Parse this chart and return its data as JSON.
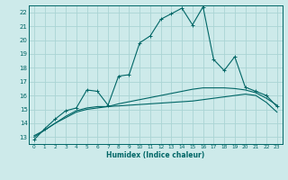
{
  "xlabel": "Humidex (Indice chaleur)",
  "xlim": [
    -0.5,
    23.5
  ],
  "ylim": [
    12.5,
    22.5
  ],
  "xticks": [
    0,
    1,
    2,
    3,
    4,
    5,
    6,
    7,
    8,
    9,
    10,
    11,
    12,
    13,
    14,
    15,
    16,
    17,
    18,
    19,
    20,
    21,
    22,
    23
  ],
  "yticks": [
    13,
    14,
    15,
    16,
    17,
    18,
    19,
    20,
    21,
    22
  ],
  "bg_color": "#cdeaea",
  "grid_color": "#aad4d4",
  "line_color": "#006666",
  "line1_y": [
    12.8,
    13.6,
    14.3,
    14.9,
    15.1,
    16.4,
    16.3,
    15.3,
    17.4,
    17.5,
    19.8,
    20.3,
    21.5,
    21.9,
    22.3,
    21.1,
    22.4,
    18.6,
    17.8,
    18.8,
    16.6,
    16.3,
    16.0,
    15.2
  ],
  "line2_y": [
    13.0,
    13.5,
    14.0,
    14.5,
    14.9,
    15.1,
    15.2,
    15.2,
    15.25,
    15.3,
    15.35,
    15.4,
    15.45,
    15.5,
    15.55,
    15.6,
    15.7,
    15.8,
    15.9,
    16.0,
    16.1,
    16.0,
    15.5,
    14.8
  ],
  "line3_y": [
    13.1,
    13.5,
    14.0,
    14.4,
    14.8,
    15.0,
    15.1,
    15.2,
    15.4,
    15.55,
    15.7,
    15.85,
    16.0,
    16.15,
    16.3,
    16.45,
    16.55,
    16.55,
    16.55,
    16.5,
    16.4,
    16.2,
    15.8,
    15.3
  ],
  "marker_indices": [
    0,
    1,
    2,
    3,
    4,
    5,
    6,
    7,
    8,
    9,
    10,
    11,
    12,
    13,
    14,
    15,
    16,
    17,
    18,
    19,
    20,
    21,
    22,
    23
  ]
}
